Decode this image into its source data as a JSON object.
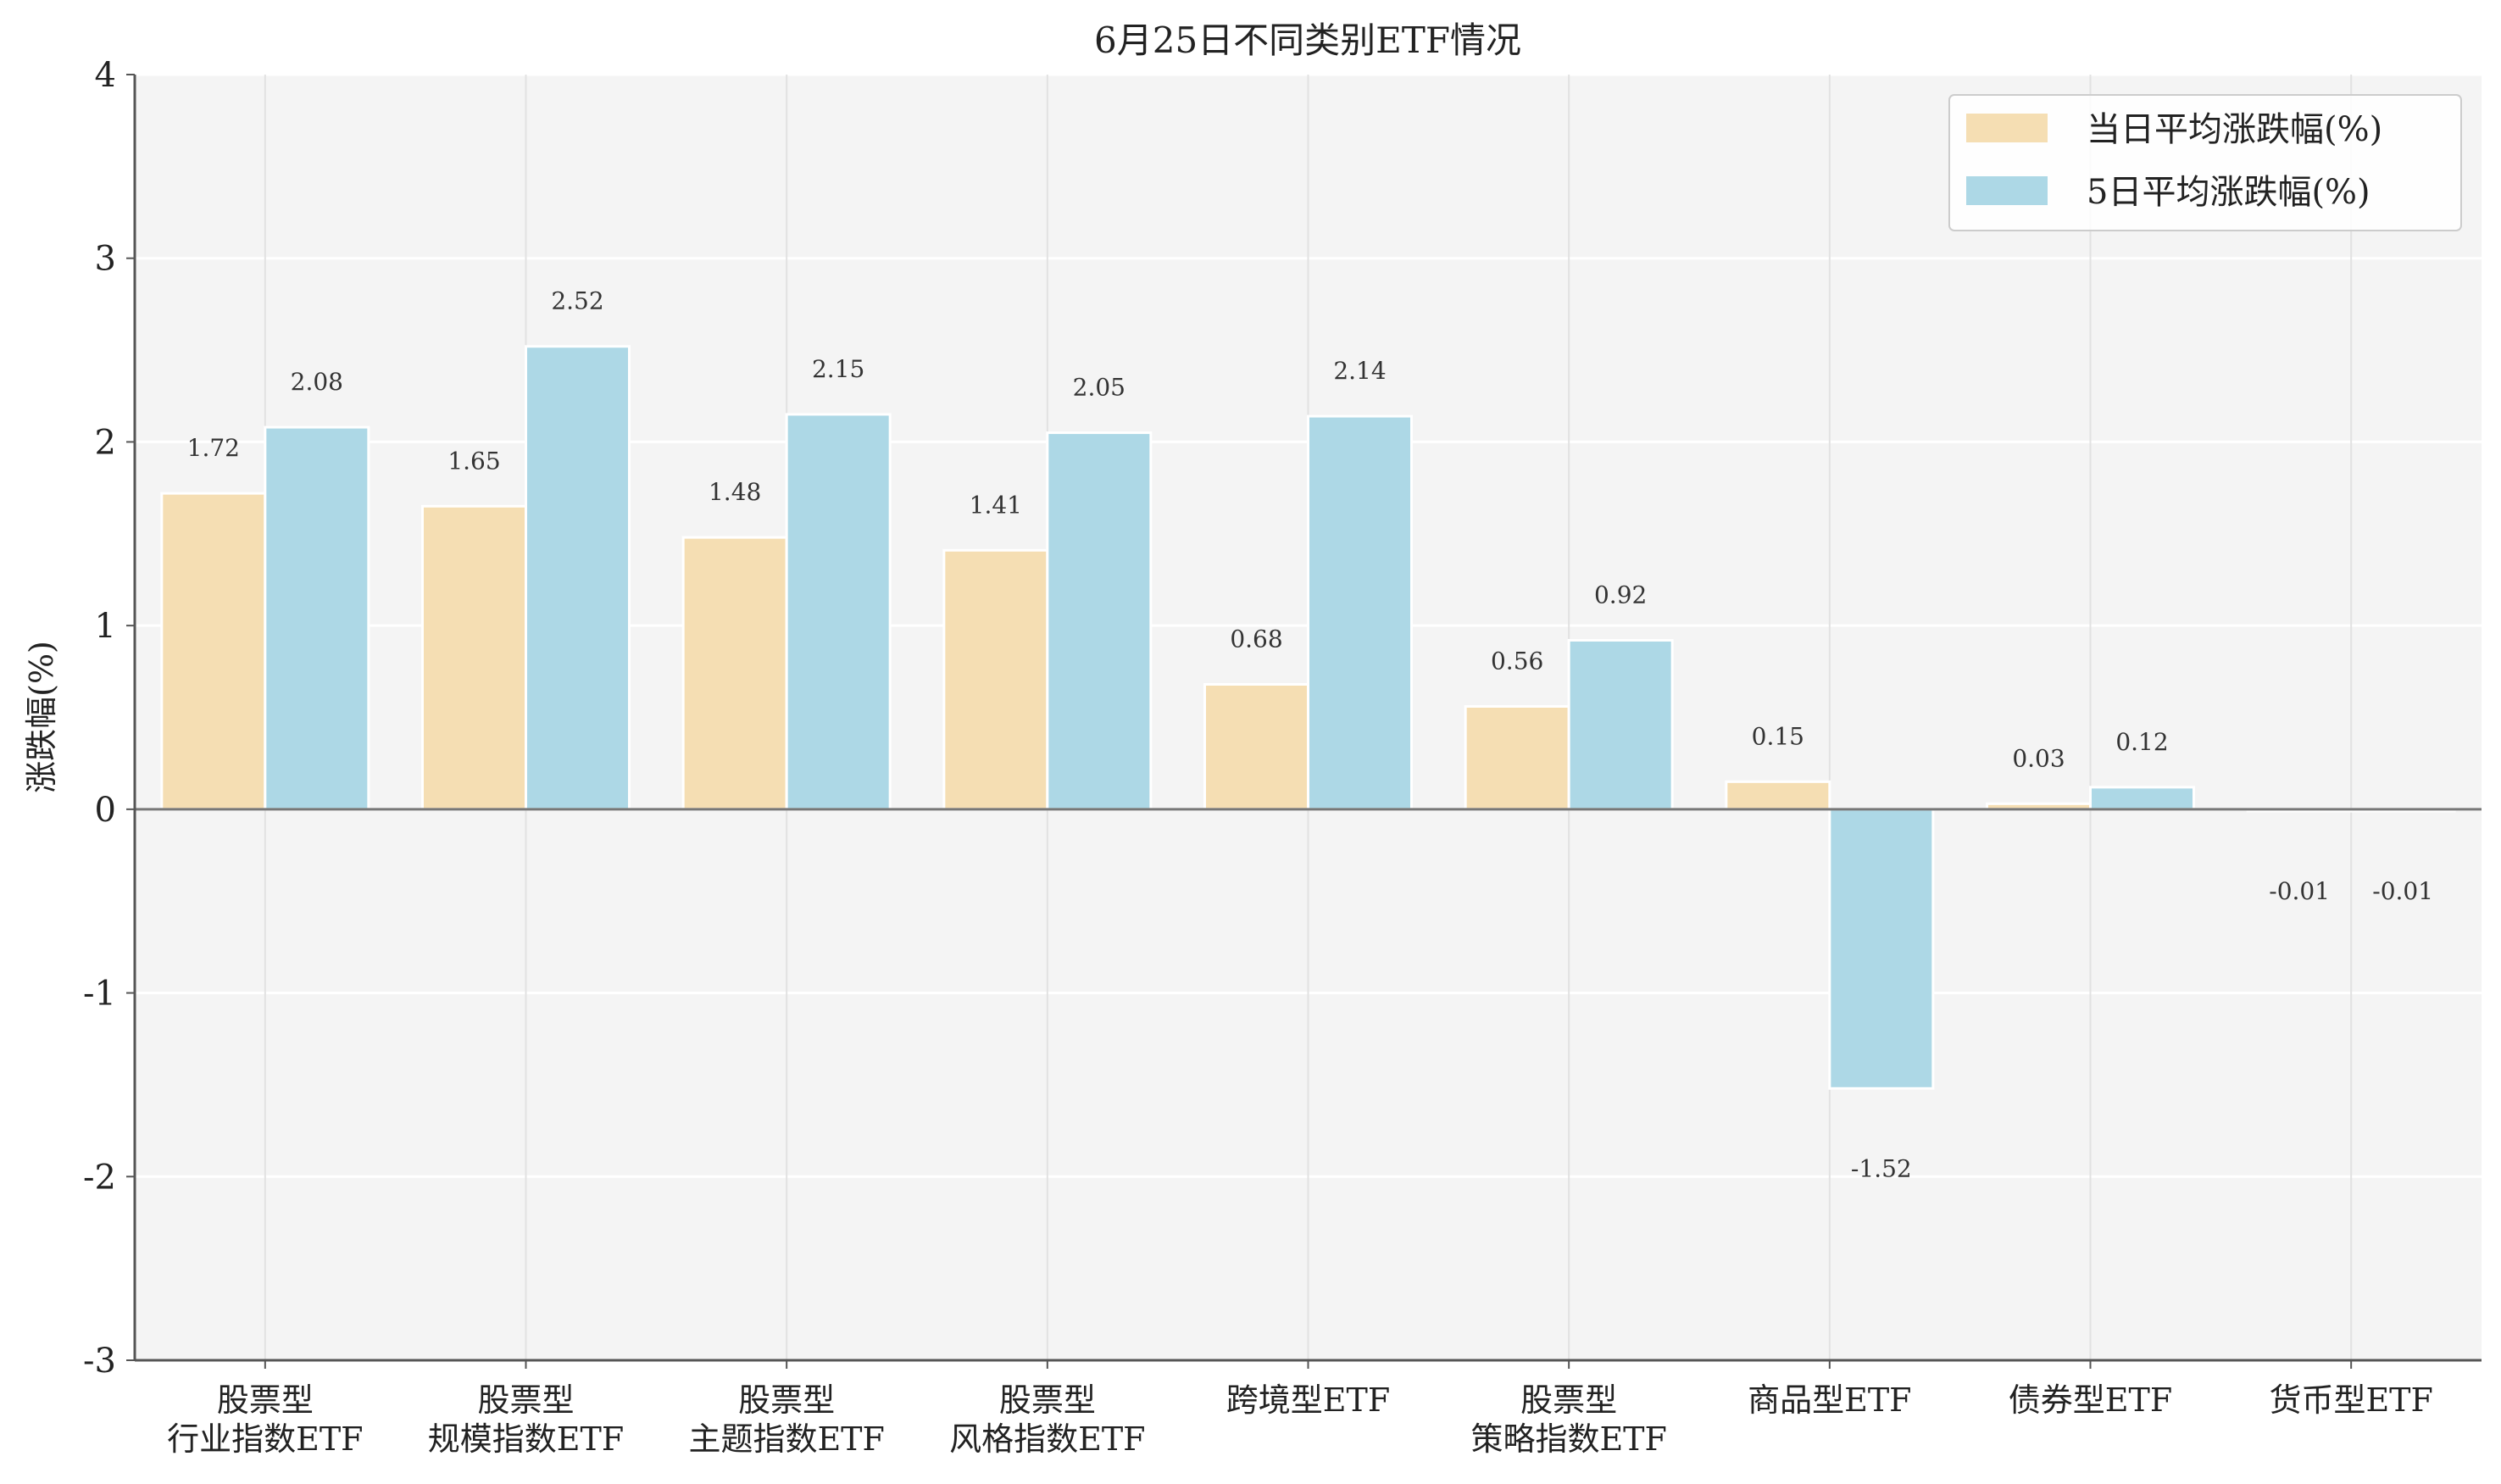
{
  "chart_data": {
    "type": "bar",
    "title": "6月25日不同类别ETF情况",
    "xlabel": "",
    "ylabel": "涨跌幅(%)",
    "ylim": [
      -3,
      4
    ],
    "yticks": [
      "4",
      "3",
      "2",
      "1",
      "0",
      "-1",
      "-2",
      "-3"
    ],
    "ytick_values": [
      4,
      3,
      2,
      1,
      0,
      -1,
      -2,
      -3
    ],
    "grid": true,
    "legend_position": "top-right",
    "categories": [
      [
        "股票型",
        "行业指数ETF"
      ],
      [
        "股票型",
        "规模指数ETF"
      ],
      [
        "股票型",
        "主题指数ETF"
      ],
      [
        "股票型",
        "风格指数ETF"
      ],
      [
        "跨境型ETF"
      ],
      [
        "股票型",
        "策略指数ETF"
      ],
      [
        "商品型ETF"
      ],
      [
        "债券型ETF"
      ],
      [
        "货币型ETF"
      ]
    ],
    "series": [
      {
        "name": "当日平均涨跌幅(%)",
        "color": "#f5deb3",
        "values": [
          1.72,
          1.65,
          1.48,
          1.41,
          0.68,
          0.56,
          0.15,
          0.03,
          -0.01
        ],
        "labels": [
          "1.72",
          "1.65",
          "1.48",
          "1.41",
          "0.68",
          "0.56",
          "0.15",
          "0.03",
          "-0.01"
        ]
      },
      {
        "name": "5日平均涨跌幅(%)",
        "color": "#add8e6",
        "values": [
          2.08,
          2.52,
          2.15,
          2.05,
          2.14,
          0.92,
          -1.52,
          0.12,
          -0.01
        ],
        "labels": [
          "2.08",
          "2.52",
          "2.15",
          "2.05",
          "2.14",
          "0.92",
          "-1.52",
          "0.12",
          "-0.01"
        ]
      }
    ]
  }
}
